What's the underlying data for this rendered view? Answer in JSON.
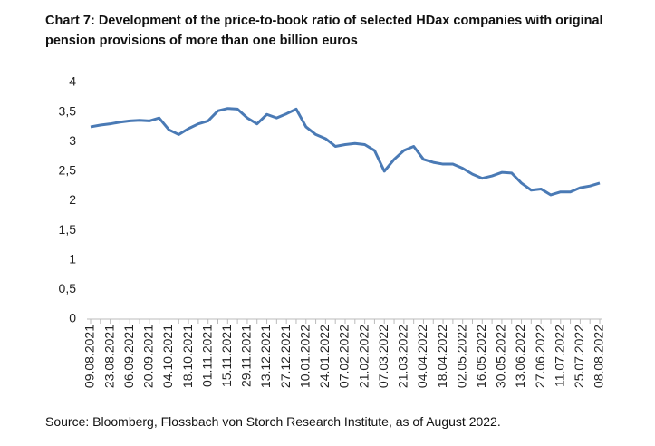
{
  "chart_data": {
    "type": "line",
    "title": "Chart 7: Development of the price-to-book ratio of selected HDax companies with original pension provisions of more than one billion euros",
    "source": "Source: Bloomberg, Flossbach von Storch Research Institute, as of August 2022.",
    "categories": [
      "09.08.2021",
      null,
      "23.08.2021",
      null,
      "06.09.2021",
      null,
      "20.09.2021",
      null,
      "04.10.2021",
      null,
      "18.10.2021",
      null,
      "01.11.2021",
      null,
      "15.11.2021",
      null,
      "29.11.2021",
      null,
      "13.12.2021",
      null,
      "27.12.2021",
      null,
      "10.01.2022",
      null,
      "24.01.2022",
      null,
      "07.02.2022",
      null,
      "21.02.2022",
      null,
      "07.03.2022",
      null,
      "21.03.2022",
      null,
      "04.04.2022",
      null,
      "18.04.2022",
      null,
      "02.05.2022",
      null,
      "16.05.2022",
      null,
      "30.05.2022",
      null,
      "13.06.2022",
      null,
      "27.06.2022",
      null,
      "11.07.2022",
      null,
      "25.07.2022",
      null,
      "08.08.2022"
    ],
    "series": [
      {
        "color": "#4a7ab5",
        "values": [
          3.25,
          3.28,
          3.3,
          3.33,
          3.35,
          3.36,
          3.35,
          3.4,
          3.2,
          3.12,
          3.22,
          3.3,
          3.35,
          3.52,
          3.56,
          3.55,
          3.4,
          3.3,
          3.46,
          3.4,
          3.47,
          3.55,
          3.25,
          3.12,
          3.05,
          2.92,
          2.95,
          2.97,
          2.95,
          2.85,
          2.5,
          2.7,
          2.85,
          2.92,
          2.7,
          2.65,
          2.62,
          2.62,
          2.55,
          2.45,
          2.38,
          2.42,
          2.48,
          2.47,
          2.3,
          2.18,
          2.2,
          2.1,
          2.15,
          2.15,
          2.22,
          2.25,
          2.3
        ]
      }
    ],
    "ylim": [
      0,
      4
    ],
    "yticks": [
      0,
      {
        "value": 0.5,
        "label": "0,5"
      },
      1,
      {
        "value": 1.5,
        "label": "1,5"
      },
      2,
      {
        "value": 2.5,
        "label": "2,5"
      },
      3,
      {
        "value": 3.5,
        "label": "3,5"
      },
      4
    ]
  }
}
